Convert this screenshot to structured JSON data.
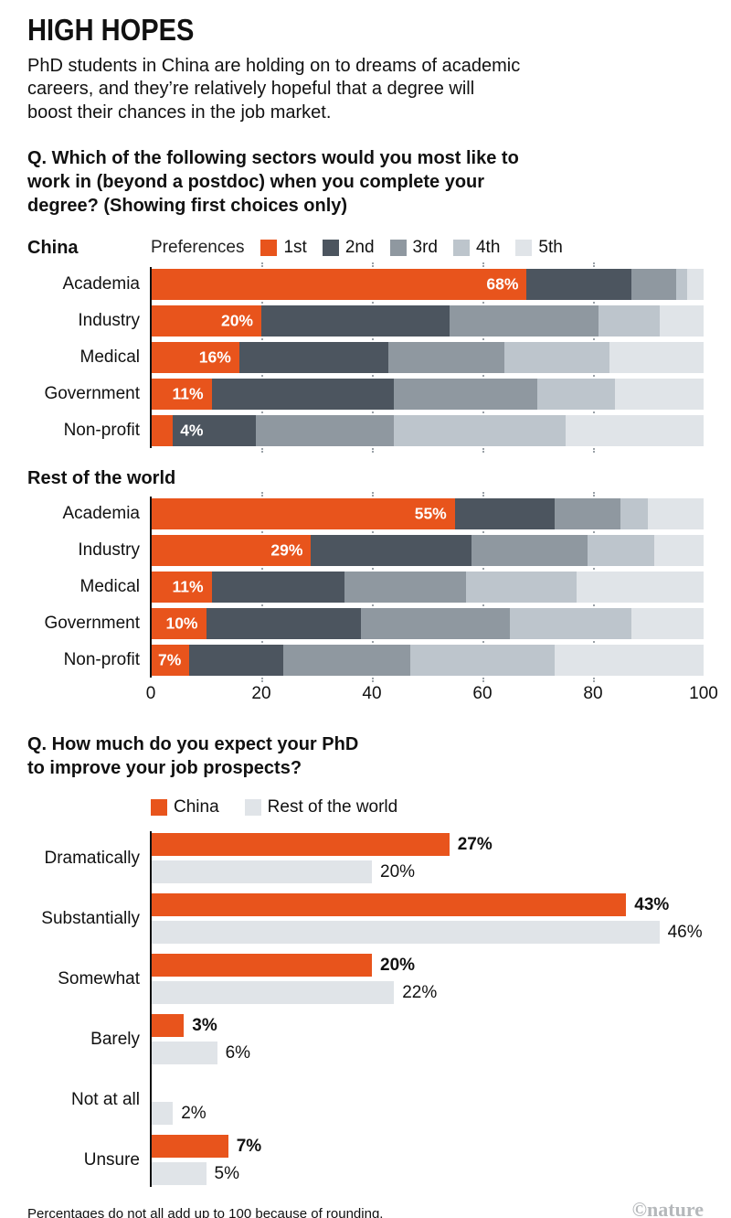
{
  "header": {
    "title": "HIGH HOPES",
    "subtitle": "PhD students in China are holding on to dreams of academic\ncareers, and they’re relatively hopeful that a degree will\nboost their chances in the job market."
  },
  "footer": {
    "note": "Percentages do not all add up to 100 because of rounding.",
    "credit": "©nature"
  },
  "chart_data": [
    {
      "type": "bar",
      "variant": "horizontal-stacked",
      "title": "Q. Which of the following sectors would you most like to\nwork in (beyond a postdoc) when you complete your\ndegree? (Showing first choices only)",
      "legend_title": "Preferences",
      "legend_position": "top",
      "grid": "dotted-vertical",
      "xlim": [
        0,
        100
      ],
      "x_ticks": [
        "0",
        "20",
        "40",
        "60",
        "80",
        "100"
      ],
      "series_meta": [
        {
          "name": "1st",
          "color": "#e8541c"
        },
        {
          "name": "2nd",
          "color": "#4c555f"
        },
        {
          "name": "3rd",
          "color": "#8f98a0"
        },
        {
          "name": "4th",
          "color": "#bdc5cc"
        },
        {
          "name": "5th",
          "color": "#e0e4e8"
        }
      ],
      "panels": [
        {
          "name": "China",
          "categories": [
            "Academia",
            "Industry",
            "Medical",
            "Government",
            "Non-profit"
          ],
          "bar_labels": [
            "68%",
            "20%",
            "16%",
            "11%",
            "4%"
          ],
          "series": [
            {
              "name": "1st",
              "values": [
                68,
                20,
                16,
                11,
                4
              ]
            },
            {
              "name": "2nd",
              "values": [
                19,
                34,
                27,
                33,
                15
              ]
            },
            {
              "name": "3rd",
              "values": [
                8,
                27,
                21,
                26,
                25
              ]
            },
            {
              "name": "4th",
              "values": [
                2,
                11,
                19,
                14,
                31
              ]
            },
            {
              "name": "5th",
              "values": [
                3,
                8,
                17,
                16,
                25
              ]
            }
          ]
        },
        {
          "name": "Rest of the world",
          "categories": [
            "Academia",
            "Industry",
            "Medical",
            "Government",
            "Non-profit"
          ],
          "bar_labels": [
            "55%",
            "29%",
            "11%",
            "10%",
            "7%"
          ],
          "series": [
            {
              "name": "1st",
              "values": [
                55,
                29,
                11,
                10,
                7
              ]
            },
            {
              "name": "2nd",
              "values": [
                18,
                29,
                24,
                28,
                17
              ]
            },
            {
              "name": "3rd",
              "values": [
                12,
                21,
                22,
                27,
                23
              ]
            },
            {
              "name": "4th",
              "values": [
                5,
                12,
                20,
                22,
                26
              ]
            },
            {
              "name": "5th",
              "values": [
                10,
                9,
                23,
                13,
                27
              ]
            }
          ]
        }
      ]
    },
    {
      "type": "bar",
      "variant": "horizontal-grouped",
      "title": "Q. How much do you expect your PhD\nto improve your job prospects?",
      "legend_position": "top",
      "grid": "off",
      "xlim": [
        0,
        50
      ],
      "categories": [
        "Dramatically",
        "Substantially",
        "Somewhat",
        "Barely",
        "Not at all",
        "Unsure"
      ],
      "series": [
        {
          "name": "China",
          "color": "#e8541c",
          "values": [
            27,
            43,
            20,
            3,
            null,
            7
          ],
          "labels": [
            "27%",
            "43%",
            "20%",
            "3%",
            "",
            "7%"
          ]
        },
        {
          "name": "Rest of the world",
          "color": "#e0e4e8",
          "values": [
            20,
            46,
            22,
            6,
            2,
            5
          ],
          "labels": [
            "20%",
            "46%",
            "22%",
            "6%",
            "2%",
            "5%"
          ]
        }
      ]
    }
  ]
}
